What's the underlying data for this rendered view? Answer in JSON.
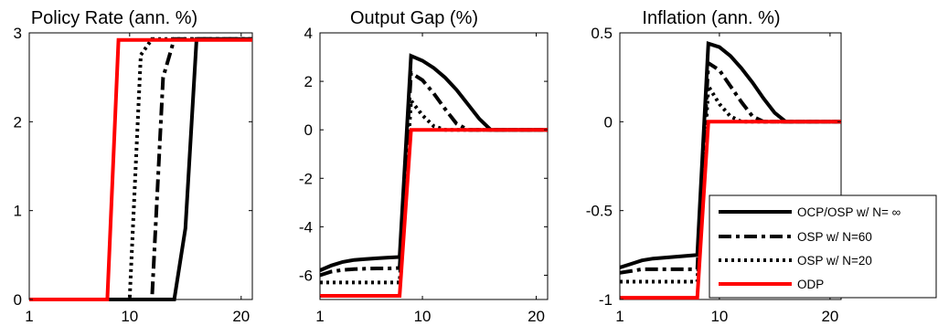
{
  "chart_data": [
    {
      "type": "line",
      "title": "Policy Rate (ann. %)",
      "xlim": [
        1,
        21
      ],
      "ylim": [
        0,
        3
      ],
      "xticks": [
        1,
        10,
        20
      ],
      "yticks": [
        0,
        1,
        2,
        3
      ],
      "ytick_labels": [
        "0",
        "1",
        "2",
        "3"
      ],
      "grid": false,
      "series": [
        {
          "name": "OCP/OSP w/ N= ∞",
          "style": "solid",
          "color": "#000000",
          "x": [
            1,
            14,
            15,
            16,
            17,
            21
          ],
          "y": [
            0,
            0,
            0.8,
            2.93,
            2.93,
            2.93
          ]
        },
        {
          "name": "OSP w/ N=60",
          "style": "dashdot",
          "color": "#000000",
          "x": [
            1,
            12,
            13,
            14,
            15,
            21
          ],
          "y": [
            0,
            0,
            2.5,
            2.93,
            2.93,
            2.93
          ]
        },
        {
          "name": "OSP w/ N=20",
          "style": "dotted",
          "color": "#000000",
          "x": [
            1,
            10,
            11,
            12,
            13,
            21
          ],
          "y": [
            0,
            0,
            2.75,
            2.93,
            2.93,
            2.93
          ]
        },
        {
          "name": "ODP",
          "style": "solid",
          "color": "#ff0000",
          "x": [
            1,
            8,
            9,
            21
          ],
          "y": [
            0,
            0,
            2.92,
            2.92
          ]
        }
      ]
    },
    {
      "type": "line",
      "title": "Output Gap (%)",
      "xlim": [
        1,
        21
      ],
      "ylim": [
        -7,
        4
      ],
      "xticks": [
        1,
        10,
        20
      ],
      "yticks": [
        4,
        2,
        0,
        -2,
        -4,
        -6
      ],
      "ytick_labels": [
        "4",
        "2",
        "0",
        "-2",
        "-4",
        "-6"
      ],
      "grid": false,
      "series": [
        {
          "name": "OCP/OSP w/ N= ∞",
          "style": "solid",
          "color": "#000000",
          "x": [
            1,
            2,
            3,
            4,
            5,
            6,
            7,
            8,
            9,
            10,
            11,
            12,
            13,
            14,
            15,
            16,
            21
          ],
          "y": [
            -5.8,
            -5.6,
            -5.45,
            -5.37,
            -5.33,
            -5.3,
            -5.27,
            -5.25,
            3.05,
            2.85,
            2.55,
            2.15,
            1.65,
            1.05,
            0.45,
            0.0,
            0.0
          ]
        },
        {
          "name": "OSP w/ N=60",
          "style": "dashdot",
          "color": "#000000",
          "x": [
            1,
            2,
            3,
            4,
            5,
            6,
            7,
            8,
            9,
            10,
            11,
            12,
            13,
            14,
            21
          ],
          "y": [
            -6.0,
            -5.85,
            -5.78,
            -5.75,
            -5.73,
            -5.72,
            -5.72,
            -5.7,
            2.35,
            2.05,
            1.5,
            0.85,
            0.25,
            0.0,
            0.0
          ]
        },
        {
          "name": "OSP w/ N=20",
          "style": "dotted",
          "color": "#000000",
          "x": [
            1,
            2,
            3,
            4,
            5,
            6,
            7,
            8,
            9,
            10,
            11,
            12,
            21
          ],
          "y": [
            -6.3,
            -6.3,
            -6.3,
            -6.3,
            -6.3,
            -6.3,
            -6.3,
            -6.3,
            1.2,
            0.6,
            0.15,
            0.0,
            0.0
          ]
        },
        {
          "name": "ODP",
          "style": "solid",
          "color": "#ff0000",
          "x": [
            1,
            8,
            9,
            21
          ],
          "y": [
            -6.85,
            -6.85,
            0.0,
            0.0
          ]
        }
      ]
    },
    {
      "type": "line",
      "title": "Inflation (ann. %)",
      "xlim": [
        1,
        21
      ],
      "ylim": [
        -1,
        0.5
      ],
      "xticks": [
        1,
        10,
        20
      ],
      "yticks": [
        0.5,
        0,
        -0.5,
        -1
      ],
      "ytick_labels": [
        "0.5",
        "0",
        "-0.5",
        "-1"
      ],
      "grid": false,
      "legend": "bottom-right",
      "series": [
        {
          "name": "OCP/OSP w/ N= ∞",
          "style": "solid",
          "color": "#000000",
          "x": [
            1,
            2,
            3,
            4,
            5,
            6,
            7,
            8,
            9,
            10,
            11,
            12,
            13,
            14,
            15,
            16,
            21
          ],
          "y": [
            -0.82,
            -0.8,
            -0.78,
            -0.77,
            -0.765,
            -0.76,
            -0.755,
            -0.75,
            0.44,
            0.42,
            0.37,
            0.3,
            0.22,
            0.13,
            0.05,
            0.0,
            0.0
          ]
        },
        {
          "name": "OSP w/ N=60",
          "style": "dashdot",
          "color": "#000000",
          "x": [
            1,
            2,
            3,
            4,
            5,
            6,
            7,
            8,
            9,
            10,
            11,
            12,
            13,
            14,
            21
          ],
          "y": [
            -0.85,
            -0.84,
            -0.83,
            -0.83,
            -0.83,
            -0.83,
            -0.83,
            -0.83,
            0.33,
            0.29,
            0.2,
            0.11,
            0.03,
            0.0,
            0.0
          ]
        },
        {
          "name": "OSP w/ N=20",
          "style": "dotted",
          "color": "#000000",
          "x": [
            1,
            2,
            3,
            4,
            5,
            6,
            7,
            8,
            9,
            10,
            11,
            12,
            21
          ],
          "y": [
            -0.9,
            -0.9,
            -0.9,
            -0.9,
            -0.9,
            -0.9,
            -0.9,
            -0.9,
            0.2,
            0.1,
            0.03,
            0.0,
            0.0
          ]
        },
        {
          "name": "ODP",
          "style": "solid",
          "color": "#ff0000",
          "x": [
            1,
            8,
            9,
            21
          ],
          "y": [
            -0.99,
            -0.99,
            0.0,
            0.0
          ]
        }
      ]
    }
  ],
  "legend": {
    "entries": [
      {
        "label": "OCP/OSP w/ N= ∞",
        "style": "solid",
        "color": "#000000"
      },
      {
        "label": "OSP w/ N=60",
        "style": "dashdot",
        "color": "#000000"
      },
      {
        "label": "OSP w/ N=20",
        "style": "dotted",
        "color": "#000000"
      },
      {
        "label": "ODP",
        "style": "solid",
        "color": "#ff0000"
      }
    ]
  }
}
